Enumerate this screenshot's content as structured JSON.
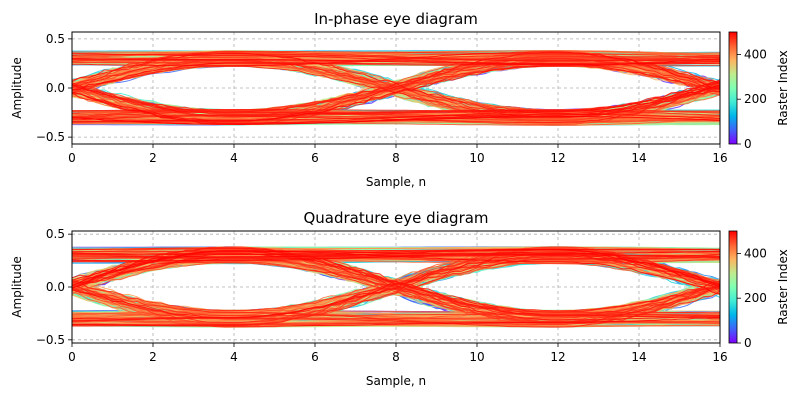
{
  "chart_data": [
    {
      "type": "line",
      "title": "In-phase eye diagram",
      "xlabel": "Sample, n",
      "ylabel": "Amplitude",
      "xlim": [
        0,
        16
      ],
      "ylim": [
        -0.57,
        0.57
      ],
      "xticks": [
        0,
        2,
        4,
        6,
        8,
        10,
        12,
        14,
        16
      ],
      "xtick_labels": [
        "0",
        "2",
        "4",
        "6",
        "8",
        "10",
        "12",
        "14",
        "16"
      ],
      "yticks": [
        0.5,
        0.0,
        -0.5
      ],
      "ytick_labels": [
        "0.5",
        "0.0",
        "−0.5"
      ],
      "grid": true,
      "symbol_period_samples": 8,
      "decision_samples": [
        4,
        12
      ],
      "amplitude_levels": [
        -0.3,
        0.3
      ],
      "trace_count": 500,
      "colorbar": {
        "label": "Raster Index",
        "colormap": "rainbow",
        "range": [
          0,
          500
        ],
        "ticks": [
          0,
          200,
          400
        ],
        "tick_labels": [
          "0",
          "200",
          "400"
        ]
      }
    },
    {
      "type": "line",
      "title": "Quadrature eye diagram",
      "xlabel": "Sample, n",
      "ylabel": "Amplitude",
      "xlim": [
        0,
        16
      ],
      "ylim": [
        -0.53,
        0.53
      ],
      "xticks": [
        0,
        2,
        4,
        6,
        8,
        10,
        12,
        14,
        16
      ],
      "xtick_labels": [
        "0",
        "2",
        "4",
        "6",
        "8",
        "10",
        "12",
        "14",
        "16"
      ],
      "yticks": [
        0.5,
        0.0,
        -0.5
      ],
      "ytick_labels": [
        "0.5",
        "0.0",
        "−0.5"
      ],
      "grid": true,
      "symbol_period_samples": 8,
      "decision_samples": [
        4,
        12
      ],
      "amplitude_levels": [
        -0.3,
        0.3
      ],
      "trace_count": 500,
      "colorbar": {
        "label": "Raster Index",
        "colormap": "rainbow",
        "range": [
          0,
          500
        ],
        "ticks": [
          0,
          200,
          400
        ],
        "tick_labels": [
          "0",
          "200",
          "400"
        ]
      }
    }
  ]
}
